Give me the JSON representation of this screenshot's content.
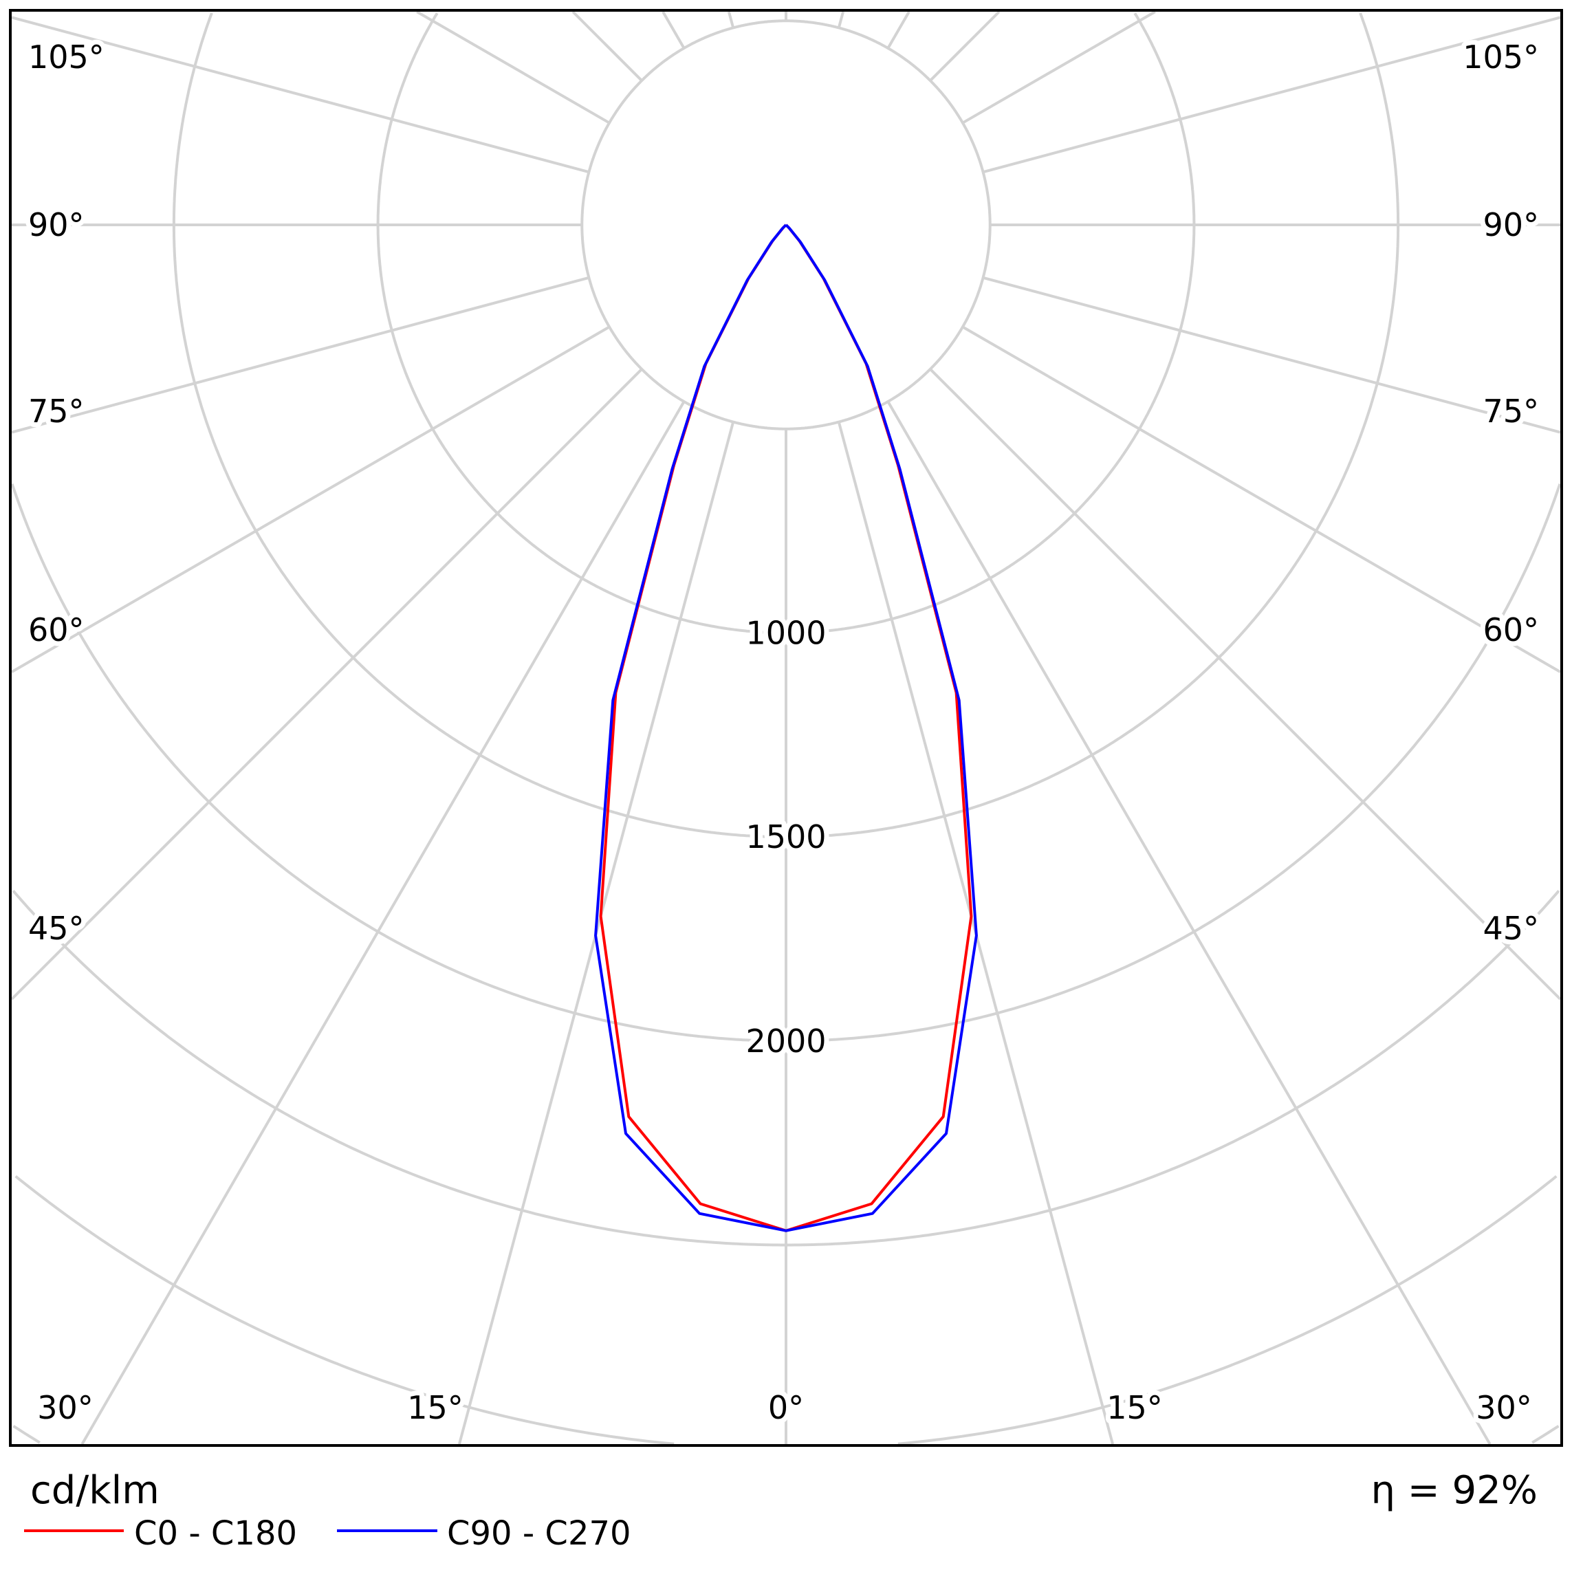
{
  "chart_data": {
    "type": "polar",
    "unit": "cd/klm",
    "efficiency": "η = 92%",
    "radial_ticks": [
      500,
      1000,
      1500,
      2000,
      2500,
      3000,
      3500
    ],
    "radial_tick_labels": [
      "1000",
      "1500",
      "2000"
    ],
    "radial_label_values": [
      1000,
      1500,
      2000
    ],
    "angle_step_deg": 15,
    "angle_labels": {
      "left": [
        "105°",
        "90°",
        "75°",
        "60°",
        "45°"
      ],
      "right": [
        "105°",
        "90°",
        "75°",
        "60°",
        "45°"
      ],
      "bottom": [
        "30°",
        "15°",
        "0°",
        "15°",
        "30°"
      ]
    },
    "grid": true,
    "legend_position": "bottom-left",
    "angles_deg": [
      0,
      5,
      10,
      15,
      20,
      25,
      30,
      35,
      40,
      45,
      50,
      55,
      60,
      65,
      70,
      75,
      80,
      85,
      90
    ],
    "series": [
      {
        "name": "C0 - C180",
        "color": "#ff0000",
        "values": [
          2465,
          2408,
          2219,
          1754,
          1220,
          650,
          393,
          160,
          50,
          10,
          0,
          0,
          0,
          0,
          0,
          0,
          0,
          0,
          0
        ]
      },
      {
        "name": "C90 - C270",
        "color": "#0000ff",
        "values": [
          2465,
          2432,
          2261,
          1803,
          1240,
          660,
          400,
          165,
          55,
          12,
          0,
          0,
          0,
          0,
          0,
          0,
          0,
          0,
          0
        ]
      }
    ]
  }
}
